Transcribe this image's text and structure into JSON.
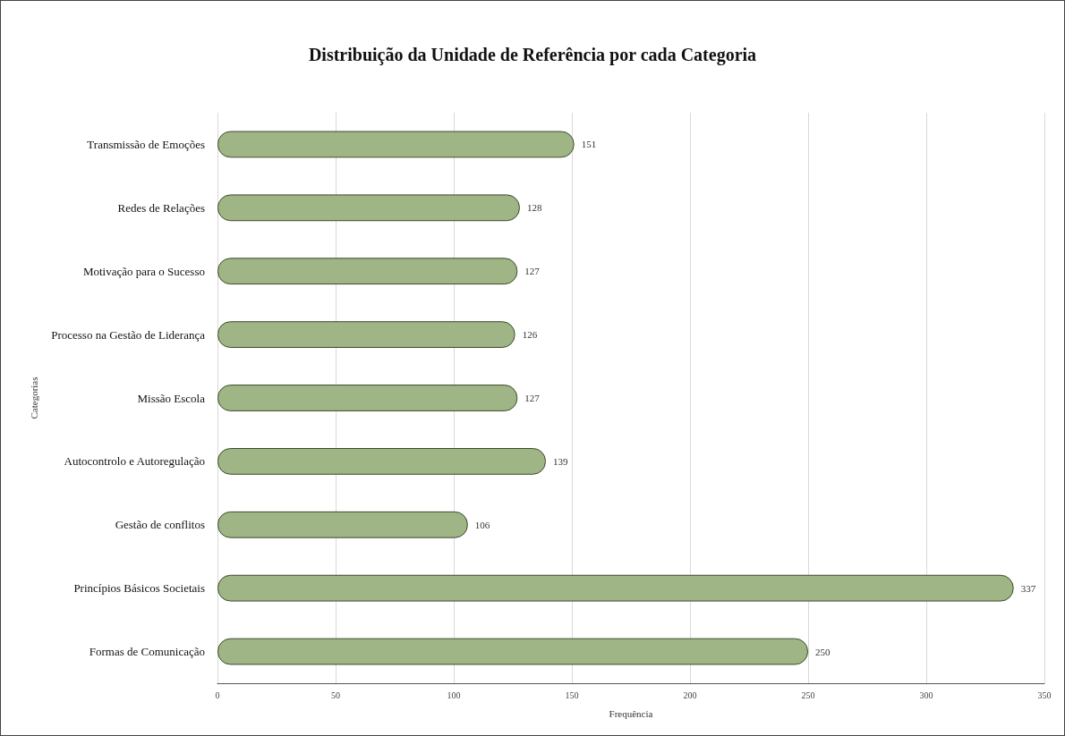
{
  "chart_data": {
    "type": "bar",
    "orientation": "horizontal",
    "title": "Distribuição da Unidade de Referência por cada Categoria",
    "xlabel": "Frequência",
    "ylabel": "Categorias",
    "categories": [
      "Transmissão de Emoções",
      "Redes de Relações",
      "Motivação para o Sucesso",
      "Processo na Gestão de Liderança",
      "Missão Escola",
      "Autocontrolo e Autoregulação",
      "Gestão de conflitos",
      "Princípios Básicos Societais",
      "Formas de Comunicação"
    ],
    "values": [
      151,
      128,
      127,
      126,
      127,
      139,
      106,
      337,
      250
    ],
    "color": "#9fb585",
    "xlim": [
      0,
      350
    ],
    "xticks": [
      0,
      50,
      100,
      150,
      200,
      250,
      300,
      350
    ],
    "grid": "x",
    "data_labels": true
  }
}
